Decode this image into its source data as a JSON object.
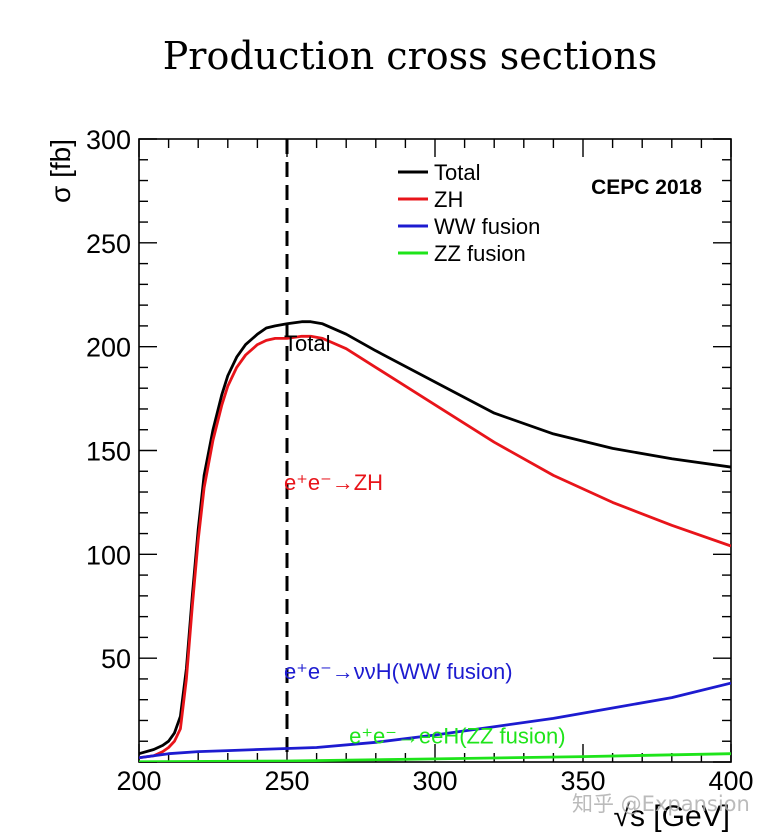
{
  "title": "Production cross sections",
  "watermark": "知乎 @Expansion",
  "chart_data": {
    "type": "line",
    "title": "Production cross sections",
    "experiment_label": "CEPC 2018",
    "xlabel": "√s [GeV]",
    "ylabel": "σ [fb]",
    "xlim": [
      200,
      400
    ],
    "ylim": [
      0,
      300
    ],
    "xticks": [
      200,
      250,
      300,
      350,
      400
    ],
    "yticks": [
      50,
      100,
      150,
      200,
      250,
      300
    ],
    "grid": false,
    "legend_position": "top-right",
    "reference_line": {
      "x": 250,
      "style": "dashed"
    },
    "colors": {
      "Total": "#000000",
      "ZH": "#e8141a",
      "WW fusion": "#1d1bd0",
      "ZZ fusion": "#1ee41a"
    },
    "series": [
      {
        "name": "Total",
        "x": [
          200,
          205,
          208,
          210,
          212,
          214,
          216,
          218,
          220,
          222,
          225,
          228,
          230,
          233,
          236,
          240,
          243,
          246,
          250,
          255,
          258,
          262,
          270,
          280,
          300,
          320,
          340,
          360,
          380,
          400
        ],
        "values": [
          4,
          6,
          8,
          10,
          14,
          22,
          45,
          80,
          112,
          138,
          160,
          177,
          186,
          195,
          201,
          206,
          209,
          210,
          211,
          212,
          212,
          211,
          206,
          198,
          183,
          168,
          158,
          151,
          146,
          142
        ]
      },
      {
        "name": "ZH",
        "x": [
          200,
          205,
          208,
          210,
          212,
          214,
          216,
          218,
          220,
          222,
          225,
          228,
          230,
          233,
          236,
          240,
          243,
          246,
          250,
          255,
          258,
          262,
          270,
          280,
          300,
          320,
          340,
          360,
          380,
          400
        ],
        "values": [
          2,
          3,
          5,
          7,
          10,
          16,
          40,
          75,
          107,
          132,
          155,
          172,
          181,
          190,
          196,
          201,
          203,
          204,
          204,
          205,
          205,
          204,
          199,
          190,
          172,
          154,
          138,
          125,
          114,
          104
        ]
      },
      {
        "name": "WW fusion",
        "x": [
          200,
          210,
          220,
          230,
          240,
          250,
          260,
          280,
          300,
          320,
          340,
          360,
          380,
          400
        ],
        "values": [
          2,
          4,
          5,
          5.5,
          6,
          6.5,
          7,
          9.5,
          13,
          17,
          21,
          26,
          31,
          38
        ]
      },
      {
        "name": "ZZ fusion",
        "x": [
          200,
          250,
          300,
          350,
          400
        ],
        "values": [
          0.1,
          0.5,
          1.5,
          2.6,
          4
        ]
      }
    ],
    "legend": [
      "Total",
      "ZH",
      "WW fusion",
      "ZZ fusion"
    ],
    "annotations": [
      {
        "label": "Total",
        "x": 249,
        "y": 198
      },
      {
        "label": "e⁺e⁻→ZH",
        "x": 249,
        "y": 131
      },
      {
        "label": "e⁺e⁻→ννH(WW fusion)",
        "x": 249,
        "y": 40
      },
      {
        "label": "e⁺e⁻→eeH(ZZ fusion)",
        "x": 271,
        "y": 9
      }
    ]
  }
}
